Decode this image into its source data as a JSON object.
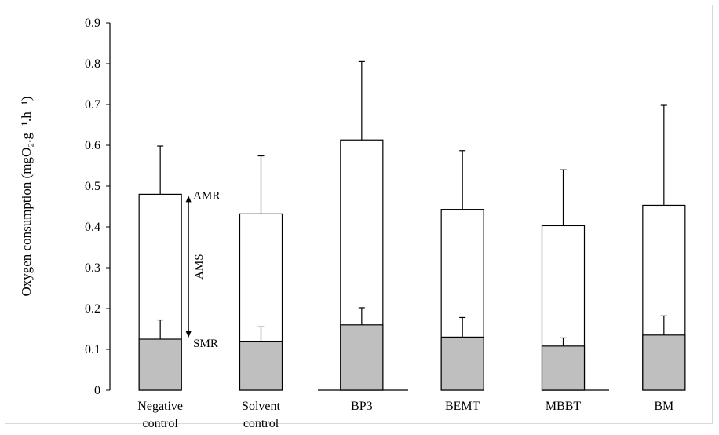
{
  "chart_data": {
    "type": "bar",
    "stacked": true,
    "categories": [
      [
        "Negative",
        "control"
      ],
      [
        "Solvent",
        "control"
      ],
      [
        "BP3"
      ],
      [
        "BEMT"
      ],
      [
        "MBBT"
      ],
      [
        "BM"
      ]
    ],
    "series": [
      {
        "name": "SMR",
        "values": [
          0.125,
          0.12,
          0.16,
          0.13,
          0.108,
          0.135
        ],
        "error_upper": [
          0.172,
          0.155,
          0.202,
          0.178,
          0.128,
          0.182
        ],
        "color": "#bfbfbf"
      },
      {
        "name": "AMR",
        "values": [
          0.48,
          0.432,
          0.613,
          0.443,
          0.403,
          0.453
        ],
        "error_upper": [
          0.598,
          0.574,
          0.805,
          0.587,
          0.54,
          0.698
        ],
        "color": "#ffffff"
      }
    ],
    "yticks": [
      "0",
      "0.1",
      "0.2",
      "0.3",
      "0.4",
      "0.5",
      "0.6",
      "0.7",
      "0.8",
      "0.9"
    ],
    "ylim": [
      0,
      0.9
    ],
    "ylabel": "Oxygen consumption (mgO₂.g⁻¹.h⁻¹)",
    "xlabel": "",
    "title": "",
    "annotations": {
      "amr": "AMR",
      "ams": "AMS",
      "smr": "SMR"
    }
  }
}
